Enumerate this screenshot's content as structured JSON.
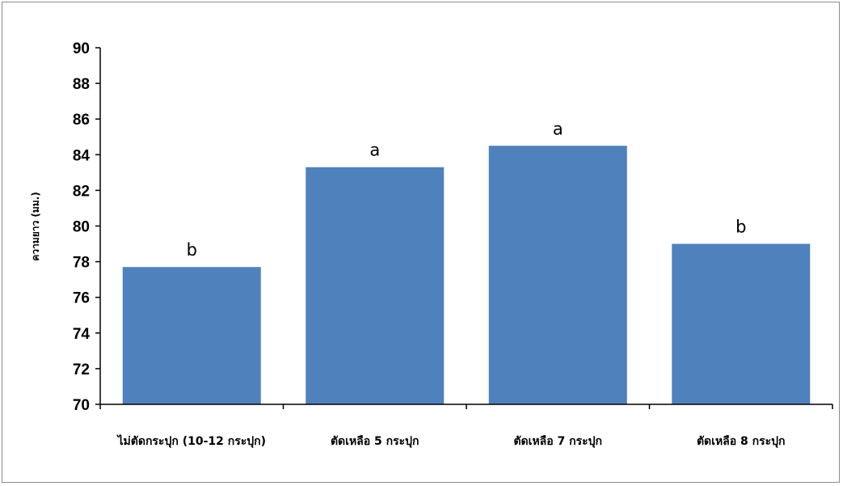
{
  "chart_data": {
    "type": "bar",
    "title": "",
    "xlabel": "",
    "ylabel": "ความยาว (มม.)",
    "ylim": [
      70,
      90
    ],
    "ytick_step": 2,
    "ytick_labels": [
      "70",
      "72",
      "74",
      "76",
      "78",
      "80",
      "82",
      "84",
      "86",
      "88",
      "90"
    ],
    "grid": false,
    "legend": "none",
    "bar_color": "#4f81bd",
    "categories": [
      "ไม่ตัดกระปุก (10-12 กระปุก)",
      "ตัดเหลือ 5 กระปุก",
      "ตัดเหลือ 7 กระปุก",
      "ตัดเหลือ 8 กระปุก"
    ],
    "values": [
      77.7,
      83.3,
      84.5,
      79.0
    ],
    "significance_labels": [
      "b",
      "a",
      "a",
      "b"
    ]
  }
}
